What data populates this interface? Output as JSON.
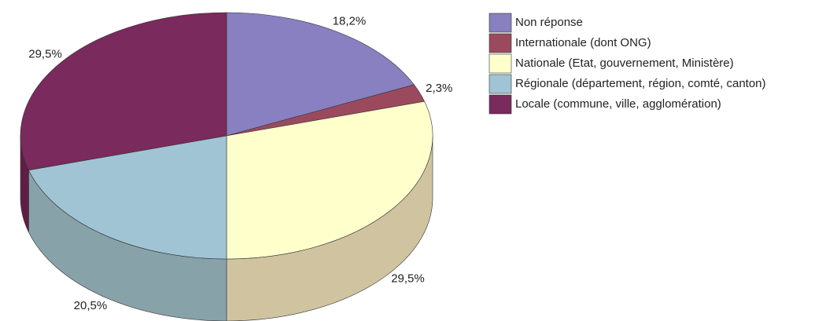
{
  "chart_data": {
    "type": "pie3d",
    "categories": [
      "Non réponse",
      "Internationale (dont ONG)",
      "Nationale (Etat, gouvernement, Ministère)",
      "Régionale (département, région, comté, canton)",
      "Locale (commune, ville, agglomération)"
    ],
    "values": [
      18.2,
      2.3,
      29.5,
      20.5,
      29.5
    ],
    "value_labels": [
      "18,2%",
      "2,3%",
      "29,5%",
      "20,5%",
      "29,5%"
    ],
    "colors": [
      "#8880c0",
      "#9b4a5e",
      "#ffffcc",
      "#a0c4d4",
      "#7a2a5c"
    ],
    "side_colors": [
      "#6a6296",
      "#7a3448",
      "#d0c4a0",
      "#88a2aa",
      "#5e1e46"
    ],
    "legend": "right"
  }
}
